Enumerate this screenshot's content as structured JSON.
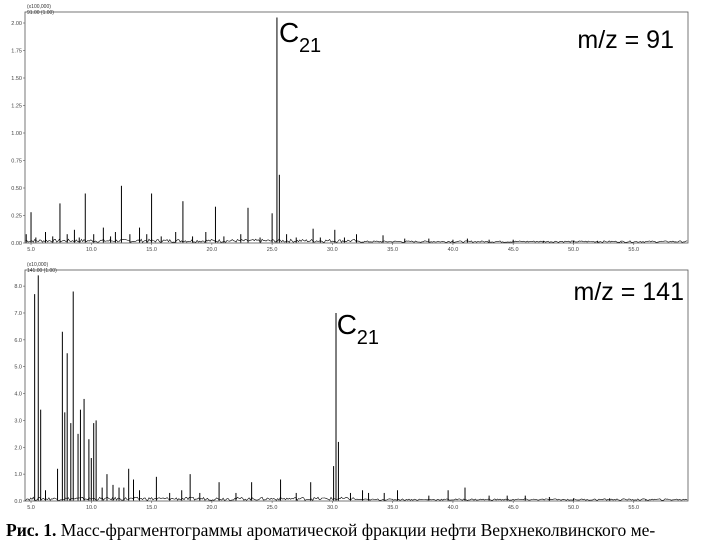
{
  "caption": {
    "label": "Рис. 1.",
    "text": " Масс-фрагментограммы ароматической фракции нефти Верхнеколвинского ме-"
  },
  "chart_data": [
    {
      "type": "line",
      "title": "m/z = 91",
      "header_lines": [
        "(x100,000)",
        "91.00 (1.00)"
      ],
      "peak_label": {
        "main": "C",
        "sub": "21",
        "x": 25.4
      },
      "xlim": [
        4.5,
        59.5
      ],
      "ylim": [
        0,
        2.1
      ],
      "x_ticks": [
        "5.0",
        "10.0",
        "15.0",
        "20.0",
        "25.0",
        "30.0",
        "35.0",
        "40.0",
        "45.0",
        "50.0",
        "55.0"
      ],
      "x_tick_values": [
        5,
        10,
        15,
        20,
        25,
        30,
        35,
        40,
        45,
        50,
        55
      ],
      "y_ticks": [
        "0.00",
        "0.25",
        "0.50",
        "0.75",
        "1.00",
        "1.25",
        "1.50",
        "1.75",
        "2.00"
      ],
      "y_tick_values": [
        0,
        0.25,
        0.5,
        0.75,
        1.0,
        1.25,
        1.5,
        1.75,
        2.0
      ],
      "peaks": [
        [
          4.6,
          0.08
        ],
        [
          5.0,
          0.28
        ],
        [
          5.4,
          0.05
        ],
        [
          6.2,
          0.1
        ],
        [
          6.8,
          0.06
        ],
        [
          7.4,
          0.36
        ],
        [
          8.0,
          0.08
        ],
        [
          8.6,
          0.12
        ],
        [
          9.0,
          0.05
        ],
        [
          9.5,
          0.45
        ],
        [
          10.2,
          0.08
        ],
        [
          11.0,
          0.14
        ],
        [
          11.6,
          0.06
        ],
        [
          12.0,
          0.1
        ],
        [
          12.5,
          0.52
        ],
        [
          13.2,
          0.08
        ],
        [
          14.0,
          0.14
        ],
        [
          14.6,
          0.08
        ],
        [
          15.0,
          0.45
        ],
        [
          15.8,
          0.06
        ],
        [
          17.0,
          0.1
        ],
        [
          17.6,
          0.38
        ],
        [
          18.4,
          0.06
        ],
        [
          19.5,
          0.1
        ],
        [
          20.3,
          0.33
        ],
        [
          21.0,
          0.06
        ],
        [
          22.4,
          0.08
        ],
        [
          23.0,
          0.32
        ],
        [
          24.0,
          0.05
        ],
        [
          25.0,
          0.27
        ],
        [
          25.4,
          2.05
        ],
        [
          25.6,
          0.62
        ],
        [
          26.2,
          0.08
        ],
        [
          27.0,
          0.05
        ],
        [
          28.4,
          0.13
        ],
        [
          29.0,
          0.05
        ],
        [
          30.2,
          0.12
        ],
        [
          31.0,
          0.05
        ],
        [
          32.0,
          0.08
        ],
        [
          34.2,
          0.07
        ],
        [
          36.0,
          0.04
        ],
        [
          38.0,
          0.04
        ],
        [
          40.0,
          0.03
        ],
        [
          41.2,
          0.04
        ],
        [
          43.0,
          0.03
        ],
        [
          45.0,
          0.03
        ],
        [
          47.5,
          0.02
        ],
        [
          50.0,
          0.02
        ],
        [
          52.0,
          0.02
        ],
        [
          54.0,
          0.01
        ]
      ]
    },
    {
      "type": "line",
      "title": "m/z = 141",
      "header_lines": [
        "(x10,000)",
        "141.00 (1.00)"
      ],
      "peak_label": {
        "main": "C",
        "sub": "21",
        "x": 30.2
      },
      "xlim": [
        4.5,
        59.5
      ],
      "ylim": [
        0,
        8.6
      ],
      "x_ticks": [
        "5.0",
        "10.0",
        "15.0",
        "20.0",
        "25.0",
        "30.0",
        "35.0",
        "40.0",
        "45.0",
        "50.0",
        "55.0"
      ],
      "x_tick_values": [
        5,
        10,
        15,
        20,
        25,
        30,
        35,
        40,
        45,
        50,
        55
      ],
      "y_ticks": [
        "0.0",
        "1.0",
        "2.0",
        "3.0",
        "4.0",
        "5.0",
        "6.0",
        "7.0",
        "8.0"
      ],
      "y_tick_values": [
        0,
        1,
        2,
        3,
        4,
        5,
        6,
        7,
        8
      ],
      "peaks": [
        [
          5.3,
          7.7
        ],
        [
          5.6,
          8.4
        ],
        [
          5.8,
          3.4
        ],
        [
          6.2,
          0.4
        ],
        [
          7.2,
          1.2
        ],
        [
          7.6,
          6.3
        ],
        [
          7.8,
          3.3
        ],
        [
          8.0,
          5.5
        ],
        [
          8.3,
          2.9
        ],
        [
          8.5,
          7.8
        ],
        [
          8.9,
          2.5
        ],
        [
          9.1,
          3.4
        ],
        [
          9.4,
          3.8
        ],
        [
          9.8,
          2.3
        ],
        [
          10.0,
          1.6
        ],
        [
          10.2,
          2.9
        ],
        [
          10.4,
          3.0
        ],
        [
          10.9,
          0.5
        ],
        [
          11.3,
          1.0
        ],
        [
          11.8,
          0.6
        ],
        [
          12.3,
          0.5
        ],
        [
          12.7,
          0.5
        ],
        [
          13.1,
          1.2
        ],
        [
          13.5,
          0.8
        ],
        [
          14.0,
          0.4
        ],
        [
          15.4,
          0.9
        ],
        [
          16.5,
          0.3
        ],
        [
          17.5,
          0.4
        ],
        [
          18.2,
          1.0
        ],
        [
          19.0,
          0.3
        ],
        [
          20.6,
          0.7
        ],
        [
          22.0,
          0.3
        ],
        [
          23.3,
          0.7
        ],
        [
          25.7,
          0.8
        ],
        [
          27.0,
          0.3
        ],
        [
          28.2,
          0.7
        ],
        [
          30.1,
          1.3
        ],
        [
          30.3,
          7.0
        ],
        [
          30.5,
          2.2
        ],
        [
          31.5,
          0.3
        ],
        [
          32.5,
          0.4
        ],
        [
          33.0,
          0.3
        ],
        [
          34.3,
          0.3
        ],
        [
          35.4,
          0.4
        ],
        [
          38.0,
          0.2
        ],
        [
          39.6,
          0.4
        ],
        [
          41.0,
          0.5
        ],
        [
          43.0,
          0.2
        ],
        [
          44.5,
          0.2
        ],
        [
          46.0,
          0.2
        ],
        [
          48.0,
          0.15
        ],
        [
          50.0,
          0.1
        ],
        [
          53.0,
          0.1
        ],
        [
          56.0,
          0.05
        ]
      ]
    }
  ]
}
